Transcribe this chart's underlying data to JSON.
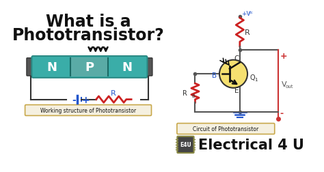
{
  "bg_color": "#ffffff",
  "title_line1": "What is a",
  "title_line2": "Phototransistor?",
  "title_color": "#111111",
  "npn_teal": "#3aada8",
  "npn_p_color": "#7bbfba",
  "npn_dark": "#2a8a85",
  "npn_label_color": "#ffffff",
  "box_label1": "Working structure of Phototransistor",
  "box_label2": "Circuit of Phototransistor",
  "circuit_label": "Electrical 4 U",
  "e4u_bg": "#c8a84b",
  "e4u_text": "E4U",
  "arrow_color": "#111111",
  "resistor_red": "#cc2222",
  "wire_blue": "#2255cc",
  "wire_dark": "#555555",
  "wire_red": "#cc2222",
  "box_border_color": "#c8a84b",
  "trans_fill": "#f5e070",
  "ground_blue": "#2255cc",
  "label_blue": "#2255cc",
  "label_dark": "#333333",
  "vout_red": "#cc3333"
}
